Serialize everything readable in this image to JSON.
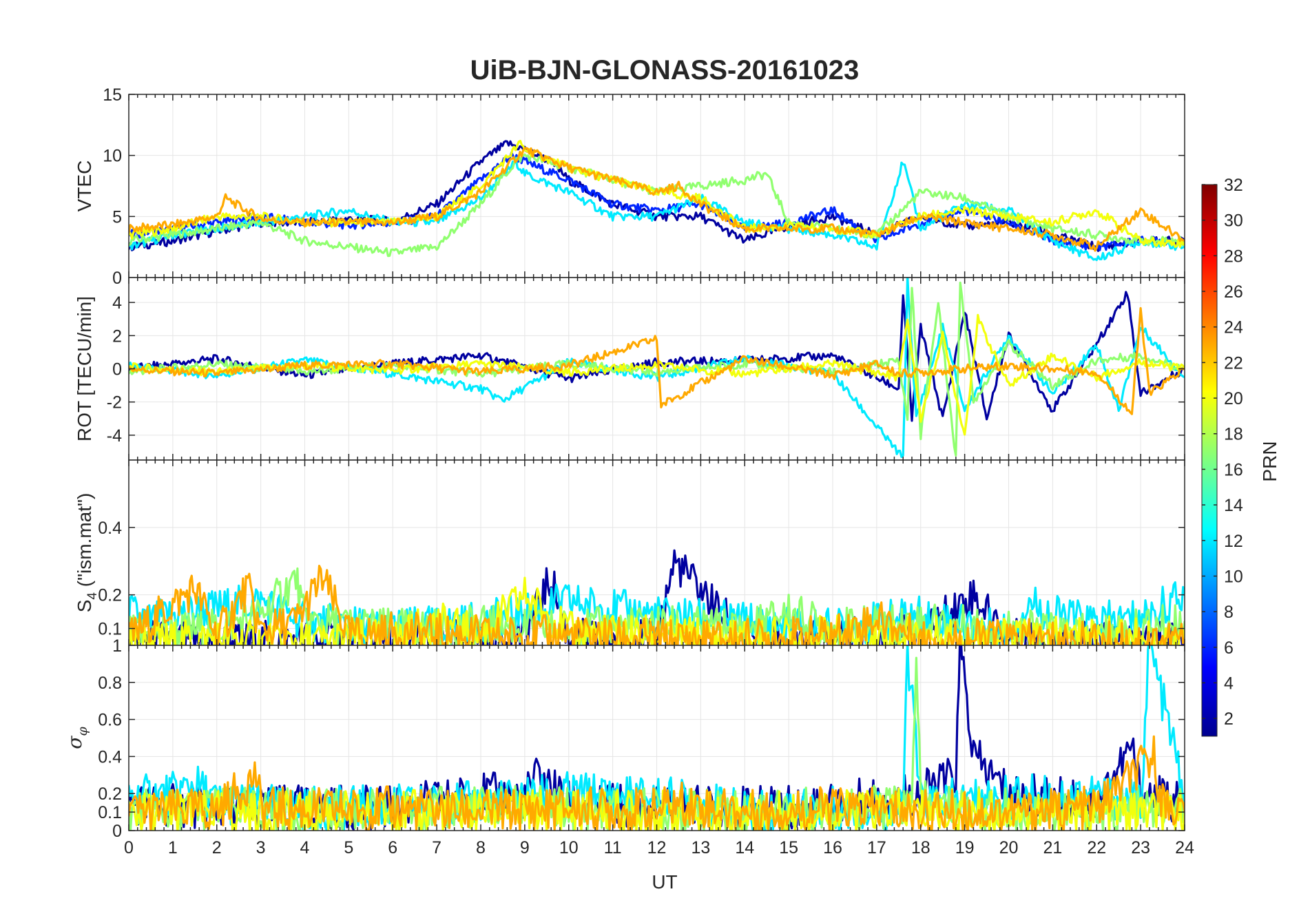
{
  "title": "UiB-BJN-GLONASS-20161023",
  "chart_data": [
    {
      "type": "line",
      "ylabel": "VTEC",
      "ylim": [
        0,
        15
      ],
      "yticks": [
        0,
        5,
        10,
        15
      ],
      "xlim": [
        0,
        24
      ],
      "series": [
        {
          "prn": 2,
          "x": [
            0,
            1,
            2,
            3,
            4,
            5,
            6,
            7,
            8,
            8.6,
            9,
            9.6,
            10,
            11,
            12,
            13,
            14,
            15,
            16,
            17,
            18,
            19,
            20,
            21,
            22,
            23,
            24
          ],
          "y": [
            2.5,
            3,
            3.8,
            4.5,
            4.5,
            4.8,
            4.6,
            6,
            9.5,
            11,
            10.5,
            9.5,
            8,
            6,
            5,
            5,
            3,
            4.2,
            5,
            3.5,
            5,
            4.2,
            4.5,
            3.5,
            2.5,
            3,
            3
          ]
        },
        {
          "prn": 6,
          "x": [
            0,
            1,
            2,
            3,
            4,
            5,
            6,
            7,
            8,
            8.7,
            9,
            10,
            11,
            12,
            13,
            14,
            15,
            16,
            17,
            18,
            19,
            20,
            21,
            22,
            23,
            24
          ],
          "y": [
            3.5,
            4,
            4.5,
            5,
            4.5,
            4.3,
            4.5,
            5,
            8,
            10,
            9.5,
            8,
            6,
            5.5,
            6,
            4,
            4.5,
            5.5,
            3,
            4.5,
            5.5,
            4.5,
            3,
            2.5,
            3,
            3
          ]
        },
        {
          "prn": 12,
          "x": [
            0,
            1,
            2,
            3,
            4,
            5,
            6,
            7,
            8,
            8.8,
            9,
            10,
            11,
            12,
            13,
            14,
            15,
            16,
            17,
            17.6,
            18,
            19,
            20,
            21,
            22,
            23,
            24
          ],
          "y": [
            2.5,
            3.5,
            4,
            4.5,
            5,
            5.5,
            4.5,
            4.5,
            6.5,
            9.5,
            8.5,
            7,
            5,
            5,
            6.5,
            4.5,
            4,
            3.5,
            2.5,
            9.5,
            4,
            6,
            5.5,
            3,
            1.5,
            3,
            2.5
          ]
        },
        {
          "prn": 17,
          "x": [
            0,
            1,
            2,
            3,
            4,
            5,
            6,
            7,
            8,
            8.8,
            9,
            10,
            11,
            12,
            13,
            14,
            14.5,
            15,
            16,
            17,
            18,
            19,
            20,
            21,
            22,
            23,
            24
          ],
          "y": [
            3,
            3.5,
            4,
            4.5,
            3,
            2.5,
            2,
            2.5,
            6,
            9.5,
            10,
            9,
            8,
            7,
            7.5,
            8,
            8.5,
            4.5,
            4,
            3.5,
            7,
            6.5,
            5,
            4,
            3.5,
            3,
            3
          ]
        },
        {
          "prn": 20,
          "x": [
            0,
            1,
            2,
            3,
            4,
            5,
            6,
            7,
            8,
            8.9,
            9,
            10,
            11,
            12,
            13,
            14,
            15,
            16,
            17,
            18,
            19,
            20,
            21,
            22,
            23,
            24
          ],
          "y": [
            3.5,
            4,
            5,
            5,
            4.5,
            4.5,
            4.5,
            5,
            7.5,
            11,
            10.5,
            9,
            8,
            7,
            6.5,
            4,
            4.2,
            4,
            3.5,
            5,
            5.5,
            5,
            4.5,
            5.5,
            3,
            2.8
          ]
        },
        {
          "prn": 23,
          "x": [
            0,
            1,
            2,
            2.2,
            3,
            4,
            5,
            6,
            7,
            8,
            9,
            10,
            11,
            12,
            12.5,
            13,
            14,
            15,
            16,
            17,
            18,
            19,
            20,
            21,
            22,
            23,
            24
          ],
          "y": [
            4,
            4.3,
            5,
            6.5,
            4.8,
            4.5,
            4.5,
            4.5,
            5,
            7,
            10.5,
            9,
            8,
            7,
            7.5,
            6,
            4,
            4,
            4,
            3.5,
            5,
            4.5,
            4,
            3.5,
            2.5,
            5.5,
            3
          ]
        }
      ]
    },
    {
      "type": "line",
      "ylabel": "ROT [TECU/min]",
      "ylim": [
        -5.5,
        5.5
      ],
      "yticks": [
        -4,
        -2,
        0,
        2,
        4
      ],
      "xlim": [
        0,
        24
      ],
      "series": [
        {
          "prn": 2,
          "x": [
            0,
            2,
            4,
            6,
            8,
            10,
            12,
            14,
            16,
            17.5,
            17.6,
            17.8,
            18,
            18.5,
            19,
            19.5,
            20,
            21,
            22,
            22.7,
            23,
            24
          ],
          "y": [
            0,
            0.6,
            -0.4,
            0.3,
            0.8,
            -0.6,
            0.4,
            0.5,
            0.8,
            -1.2,
            4.5,
            -3,
            2.5,
            -3,
            3.5,
            -3,
            2,
            -2.5,
            1.5,
            4.6,
            -1.5,
            0
          ]
        },
        {
          "prn": 12,
          "x": [
            0,
            2,
            4,
            6,
            8,
            8.5,
            10,
            12,
            14,
            16,
            17.6,
            17.7,
            17.9,
            18.5,
            19,
            20,
            21,
            22,
            22.5,
            23,
            24
          ],
          "y": [
            0.2,
            -0.4,
            0.5,
            -0.3,
            -1.2,
            -1.9,
            0.4,
            -0.5,
            0.6,
            -0.3,
            -5.4,
            5.4,
            -3,
            2.5,
            -2.5,
            2,
            -1.5,
            1.5,
            -2.5,
            2.5,
            -0.5
          ]
        },
        {
          "prn": 17,
          "x": [
            0,
            2,
            4,
            6,
            8,
            10,
            12,
            14,
            16,
            17.5,
            17.7,
            17.8,
            18,
            18.4,
            18.8,
            18.9,
            19.2,
            20,
            21,
            22,
            23,
            24
          ],
          "y": [
            -0.2,
            0.3,
            -0.2,
            0.2,
            -0.3,
            0.3,
            -0.2,
            0.3,
            -0.2,
            0.5,
            -3,
            5,
            -4,
            4,
            -5.4,
            5.4,
            -2,
            1.5,
            -1,
            0.5,
            0.8,
            0
          ]
        },
        {
          "prn": 20,
          "x": [
            0,
            2,
            4,
            6,
            8,
            10,
            12,
            14,
            16,
            17.5,
            17.7,
            18,
            18.5,
            19,
            19.3,
            20,
            21,
            22,
            23,
            24
          ],
          "y": [
            0.1,
            -0.2,
            0.2,
            -0.1,
            0.3,
            -0.2,
            0.2,
            -0.3,
            0.3,
            -0.5,
            3,
            -3,
            2,
            -4,
            3,
            -1,
            0.8,
            -0.5,
            0.4,
            0
          ]
        },
        {
          "prn": 23,
          "x": [
            0,
            2,
            4,
            6,
            8,
            10,
            12,
            12.1,
            14,
            16,
            17,
            17.5,
            20,
            22,
            22.8,
            23,
            23.2,
            24
          ],
          "y": [
            0,
            -0.3,
            0.2,
            0.3,
            -0.2,
            0.2,
            1.8,
            -2.2,
            0.6,
            -0.4,
            0.3,
            -0.3,
            0.2,
            -0.2,
            -2.7,
            3.5,
            -1.5,
            0
          ]
        }
      ]
    },
    {
      "type": "line",
      "ylabel": "S4 (\"ism.mat\")",
      "ylabel_main": "S",
      "ylabel_sub": "4",
      "ylabel_rest": " (\"ism.mat\")",
      "ylim": [
        0.05,
        0.6
      ],
      "yticks": [
        0.1,
        0.2,
        0.4
      ],
      "xlim": [
        0,
        24
      ],
      "series": [
        {
          "prn": 2,
          "x": [
            0,
            2,
            4,
            6,
            8,
            9,
            9.6,
            10,
            12,
            12.4,
            14,
            16,
            18,
            19.2,
            20,
            22,
            24
          ],
          "y": [
            0.07,
            0.06,
            0.07,
            0.06,
            0.07,
            0.08,
            0.25,
            0.07,
            0.07,
            0.3,
            0.07,
            0.07,
            0.09,
            0.2,
            0.07,
            0.06,
            0.07
          ]
        },
        {
          "prn": 12,
          "x": [
            0,
            0.5,
            1,
            2,
            3,
            4,
            6,
            8,
            10,
            12,
            14,
            16,
            18,
            20,
            20.5,
            21,
            22,
            23,
            24
          ],
          "y": [
            0.15,
            0.12,
            0.14,
            0.16,
            0.18,
            0.12,
            0.1,
            0.12,
            0.18,
            0.14,
            0.12,
            0.1,
            0.14,
            0.09,
            0.18,
            0.14,
            0.12,
            0.13,
            0.2
          ]
        },
        {
          "prn": 17,
          "x": [
            0,
            2,
            3,
            3.8,
            4,
            6,
            8,
            10,
            12,
            14,
            15,
            16,
            18,
            20,
            22,
            24
          ],
          "y": [
            0.08,
            0.1,
            0.14,
            0.25,
            0.12,
            0.1,
            0.11,
            0.1,
            0.11,
            0.1,
            0.15,
            0.1,
            0.12,
            0.1,
            0.08,
            0.12
          ]
        },
        {
          "prn": 20,
          "x": [
            0,
            2,
            4,
            6,
            7,
            8,
            9,
            10,
            12,
            14,
            16,
            18,
            20,
            22,
            24
          ],
          "y": [
            0.06,
            0.07,
            0.06,
            0.07,
            0.12,
            0.08,
            0.2,
            0.09,
            0.08,
            0.07,
            0.08,
            0.08,
            0.07,
            0.08,
            0.06
          ]
        },
        {
          "prn": 23,
          "x": [
            0,
            1.5,
            2,
            2.7,
            3,
            3.8,
            4.4,
            5,
            6,
            8,
            10,
            12,
            14,
            16,
            17,
            18,
            20,
            22,
            24
          ],
          "y": [
            0.07,
            0.22,
            0.08,
            0.22,
            0.09,
            0.12,
            0.25,
            0.08,
            0.09,
            0.08,
            0.08,
            0.07,
            0.07,
            0.08,
            0.13,
            0.07,
            0.07,
            0.06,
            0.07
          ]
        }
      ]
    },
    {
      "type": "line",
      "ylabel": "σφ",
      "ylabel_main": "σ",
      "ylabel_sub": "φ",
      "ylim": [
        0,
        1
      ],
      "yticks": [
        0,
        0.1,
        0.2,
        0.4,
        0.6,
        0.8,
        1
      ],
      "xlabel": "UT",
      "xlim": [
        0,
        24
      ],
      "xticks": [
        0,
        1,
        2,
        3,
        4,
        5,
        6,
        7,
        8,
        9,
        10,
        11,
        12,
        13,
        14,
        15,
        16,
        17,
        18,
        19,
        20,
        21,
        22,
        23,
        24
      ],
      "series": [
        {
          "prn": 2,
          "x": [
            0,
            2,
            4,
            6,
            8,
            9,
            9.3,
            10,
            12,
            14,
            16,
            17.6,
            18,
            18.8,
            18.9,
            19.2,
            20,
            22,
            22.8,
            23,
            24
          ],
          "y": [
            0.15,
            0.12,
            0.13,
            0.12,
            0.2,
            0.18,
            0.3,
            0.15,
            0.13,
            0.12,
            0.14,
            0.2,
            0.2,
            0.3,
            1,
            0.4,
            0.2,
            0.15,
            0.45,
            0.2,
            0.15
          ]
        },
        {
          "prn": 12,
          "x": [
            0,
            1,
            1.5,
            2,
            4,
            6,
            8,
            10,
            12,
            13,
            14,
            16,
            17.6,
            17.7,
            18,
            20,
            22,
            23,
            23.2,
            24
          ],
          "y": [
            0.18,
            0.2,
            0.25,
            0.15,
            0.12,
            0.13,
            0.15,
            0.2,
            0.18,
            0.15,
            0.1,
            0.12,
            0.1,
            1,
            0.15,
            0.18,
            0.2,
            0.15,
            1,
            0.2
          ]
        },
        {
          "prn": 17,
          "x": [
            0,
            2,
            4,
            6,
            8,
            10,
            12,
            14,
            16,
            17.8,
            17.9,
            18,
            19,
            20,
            22,
            24
          ],
          "y": [
            0.1,
            0.12,
            0.11,
            0.1,
            0.13,
            0.12,
            0.11,
            0.1,
            0.12,
            0.13,
            1,
            0.15,
            0.12,
            0.11,
            0.1,
            0.12
          ]
        },
        {
          "prn": 20,
          "x": [
            0,
            2,
            4,
            6,
            8,
            10,
            12,
            14,
            16,
            18,
            20,
            22,
            24
          ],
          "y": [
            0.09,
            0.1,
            0.09,
            0.1,
            0.1,
            0.11,
            0.1,
            0.09,
            0.1,
            0.11,
            0.1,
            0.1,
            0.09
          ]
        },
        {
          "prn": 23,
          "x": [
            0,
            2,
            2.9,
            3,
            4,
            6,
            8,
            10,
            12,
            12.5,
            14,
            16,
            18,
            20,
            22,
            23.3,
            23.5,
            24
          ],
          "y": [
            0.1,
            0.11,
            0.3,
            0.12,
            0.11,
            0.12,
            0.1,
            0.12,
            0.11,
            0.15,
            0.1,
            0.12,
            0.1,
            0.1,
            0.12,
            0.4,
            0.15,
            0.1
          ]
        }
      ]
    }
  ],
  "colorbar": {
    "label": "PRN",
    "range": [
      1,
      32
    ],
    "ticks": [
      2,
      4,
      6,
      8,
      10,
      12,
      14,
      16,
      18,
      20,
      22,
      24,
      26,
      28,
      30,
      32
    ],
    "colormap": "jet"
  }
}
